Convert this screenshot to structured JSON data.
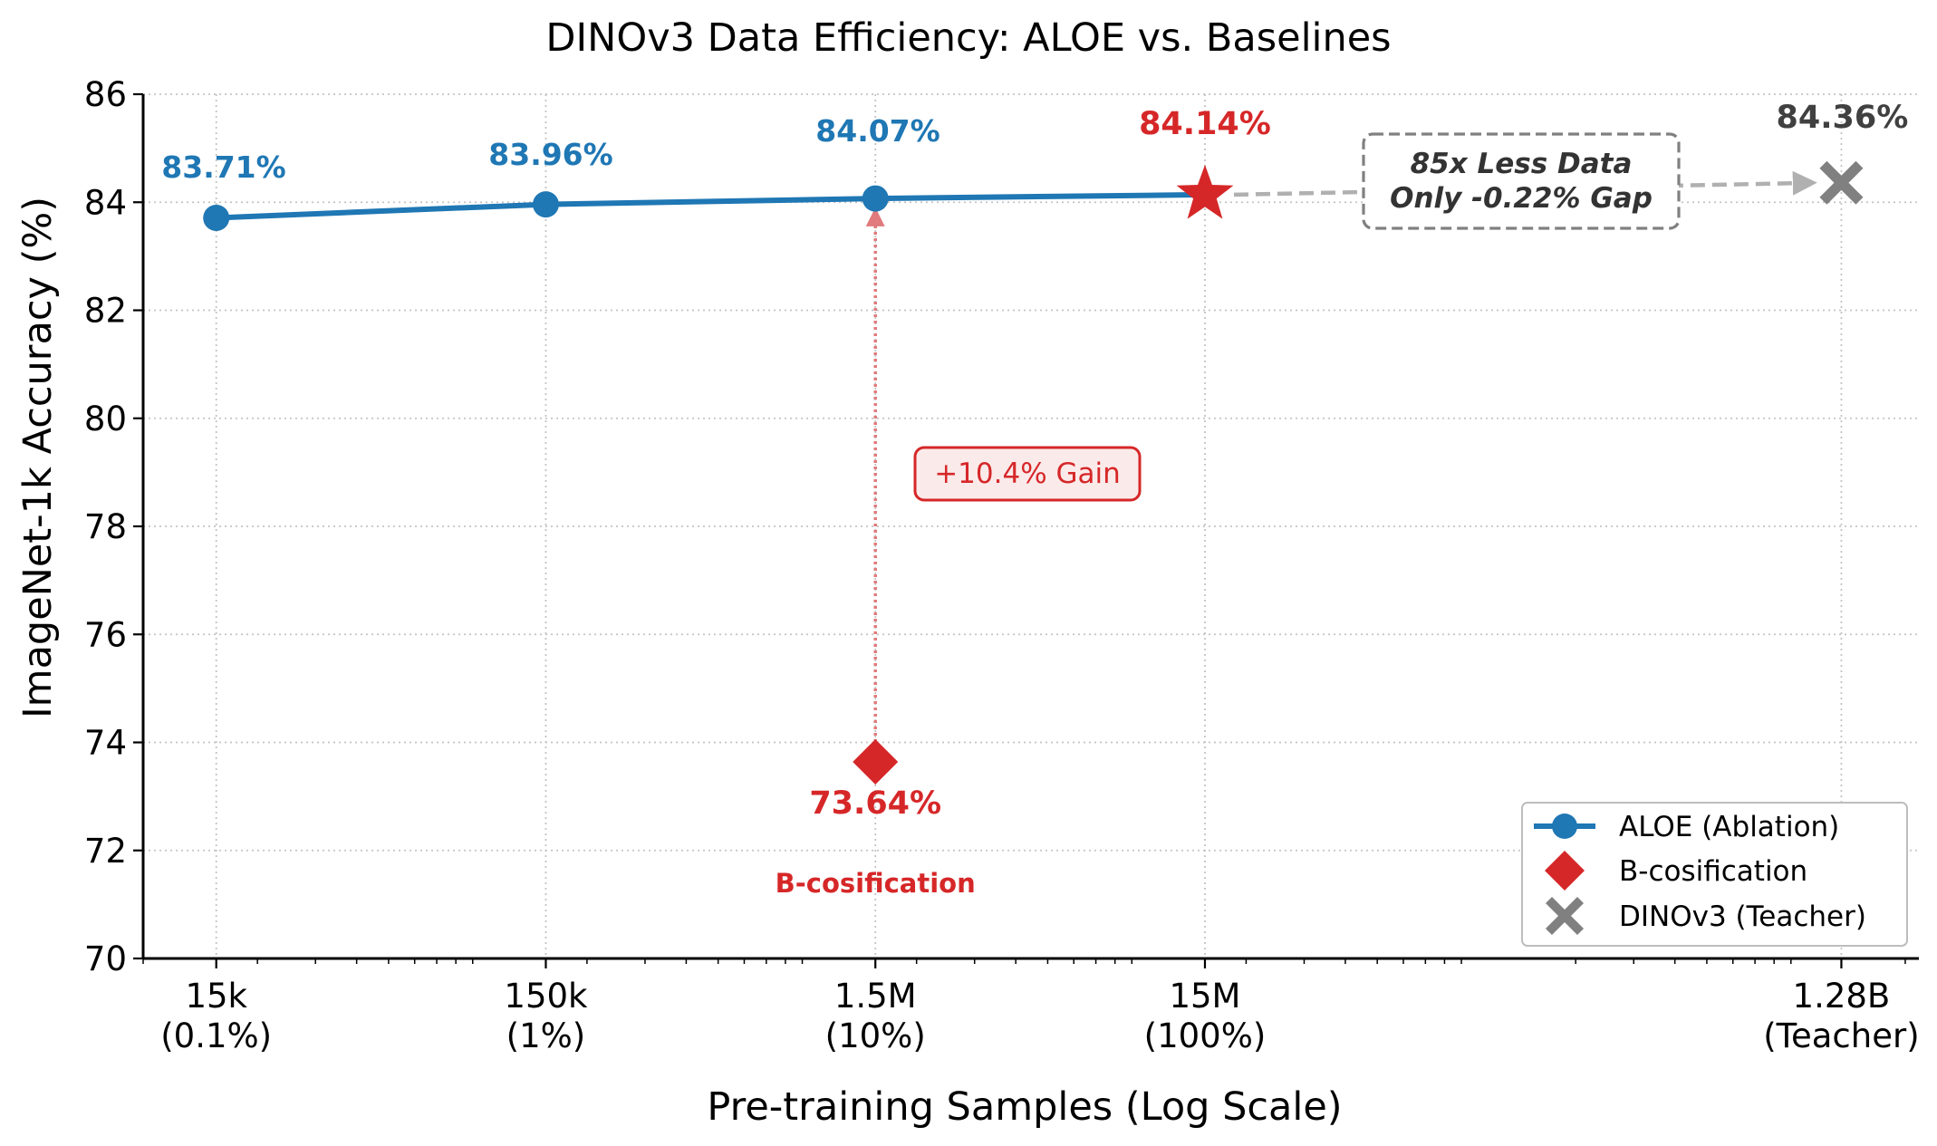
{
  "chart_data": {
    "type": "line",
    "title": "DINOv3 Data Efficiency: ALOE vs. Baselines",
    "xlabel": "Pre-training Samples (Log Scale)",
    "ylabel": "ImageNet-1k Accuracy (%)",
    "x_scale": "log",
    "xlim": [
      9000,
      2200000000
    ],
    "ylim": [
      70,
      86
    ],
    "grid": true,
    "legend_position": "lower-right",
    "x_ticks": [
      {
        "value": 15000,
        "line1": "15k",
        "line2": "(0.1%)"
      },
      {
        "value": 150000,
        "line1": "150k",
        "line2": "(1%)"
      },
      {
        "value": 1500000,
        "line1": "1.5M",
        "line2": "(10%)"
      },
      {
        "value": 15000000,
        "line1": "15M",
        "line2": "(100%)"
      },
      {
        "value": 1280000000,
        "line1": "1.28B",
        "line2": "(Teacher)"
      }
    ],
    "y_ticks": [
      70,
      72,
      74,
      76,
      78,
      80,
      82,
      84,
      86
    ],
    "series": [
      {
        "name": "ALOE (Ablation)",
        "color": "#1f77b4",
        "marker": "circle",
        "x": [
          15000,
          150000,
          1500000,
          15000000
        ],
        "y": [
          83.71,
          83.96,
          84.07,
          84.14
        ],
        "labels": [
          "83.71%",
          "83.96%",
          "84.07%",
          "84.14%"
        ],
        "highlight_last": "star"
      },
      {
        "name": "B-cosification",
        "color": "#d62728",
        "marker": "diamond",
        "x": [
          1500000
        ],
        "y": [
          73.64
        ],
        "labels": [
          "73.64%"
        ]
      },
      {
        "name": "DINOv3 (Teacher)",
        "color": "#808080",
        "marker": "x",
        "x": [
          1280000000
        ],
        "y": [
          84.36
        ],
        "labels": [
          "84.36%"
        ]
      }
    ],
    "annotations": {
      "gain_label": "+10.4% Gain",
      "gap_line1": "85x Less Data",
      "gap_line2": "Only -0.22% Gap",
      "bcos_label": "B-cosification"
    }
  }
}
